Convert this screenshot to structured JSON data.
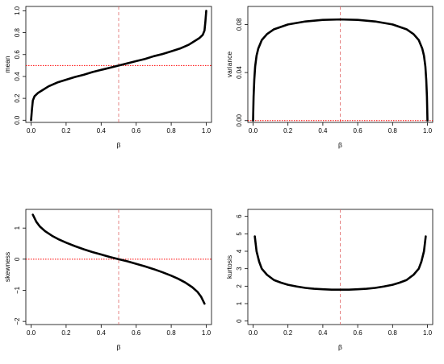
{
  "chart_data": [
    {
      "type": "line",
      "xlabel": "β",
      "ylabel": "mean",
      "xlim": [
        0,
        1
      ],
      "ylim": [
        0,
        1
      ],
      "xticks": [
        0.0,
        0.2,
        0.4,
        0.6,
        0.8,
        1.0
      ],
      "xtick_labels": [
        "0.0",
        "0.2",
        "0.4",
        "0.6",
        "0.8",
        "1.0"
      ],
      "yticks": [
        0,
        0.2,
        0.4,
        0.6,
        0.8,
        1.0
      ],
      "ytick_labels": [
        "0.0",
        "0.2",
        "0.4",
        "0.6",
        "0.8",
        "1.0"
      ],
      "reference_lines": {
        "vertical_x": 0.5,
        "horizontal_y": 0.5
      },
      "x": [
        0.0,
        0.005,
        0.01,
        0.02,
        0.04,
        0.06,
        0.1,
        0.15,
        0.2,
        0.25,
        0.3,
        0.35,
        0.4,
        0.45,
        0.5,
        0.55,
        0.6,
        0.65,
        0.7,
        0.75,
        0.8,
        0.85,
        0.9,
        0.94,
        0.96,
        0.98,
        0.99,
        0.995,
        1.0
      ],
      "y": [
        0.0,
        0.1,
        0.18,
        0.22,
        0.25,
        0.27,
        0.31,
        0.345,
        0.37,
        0.395,
        0.415,
        0.44,
        0.46,
        0.48,
        0.5,
        0.52,
        0.54,
        0.56,
        0.585,
        0.605,
        0.63,
        0.655,
        0.69,
        0.73,
        0.75,
        0.78,
        0.82,
        0.9,
        1.0
      ],
      "grid": false
    },
    {
      "type": "line",
      "xlabel": "β",
      "ylabel": "variance",
      "xlim": [
        0,
        1
      ],
      "ylim": [
        0,
        0.095
      ],
      "xticks": [
        0.0,
        0.2,
        0.4,
        0.6,
        0.8,
        1.0
      ],
      "xtick_labels": [
        "0.0",
        "0.2",
        "0.4",
        "0.6",
        "0.8",
        "1.0"
      ],
      "yticks": [
        0.0,
        0.04,
        0.08
      ],
      "ytick_labels": [
        "0.00",
        "0.04",
        "0.08"
      ],
      "reference_lines": {
        "vertical_x": 0.5,
        "horizontal_y": 0.0
      },
      "x": [
        0.0,
        0.003,
        0.007,
        0.012,
        0.02,
        0.03,
        0.05,
        0.08,
        0.12,
        0.2,
        0.3,
        0.4,
        0.5,
        0.6,
        0.7,
        0.8,
        0.88,
        0.92,
        0.95,
        0.97,
        0.98,
        0.988,
        0.993,
        0.997,
        1.0
      ],
      "y": [
        0.0,
        0.02,
        0.034,
        0.045,
        0.054,
        0.06,
        0.067,
        0.072,
        0.076,
        0.08,
        0.0825,
        0.0838,
        0.0842,
        0.0838,
        0.0825,
        0.08,
        0.076,
        0.072,
        0.067,
        0.06,
        0.054,
        0.045,
        0.034,
        0.02,
        0.0
      ],
      "grid": false
    },
    {
      "type": "line",
      "xlabel": "β",
      "ylabel": "skewness",
      "xlim": [
        0,
        1
      ],
      "ylim": [
        -2,
        1.5
      ],
      "xticks": [
        0.0,
        0.2,
        0.4,
        0.6,
        0.8,
        1.0
      ],
      "xtick_labels": [
        "0.0",
        "0.2",
        "0.4",
        "0.6",
        "0.8",
        "1.0"
      ],
      "yticks": [
        -2,
        -1,
        0,
        1
      ],
      "ytick_labels": [
        "−2",
        "−1",
        "0",
        "1"
      ],
      "reference_lines": {
        "vertical_x": 0.5,
        "horizontal_y": 0.0
      },
      "x": [
        0.01,
        0.03,
        0.05,
        0.08,
        0.12,
        0.16,
        0.2,
        0.25,
        0.3,
        0.35,
        0.4,
        0.45,
        0.5,
        0.55,
        0.6,
        0.65,
        0.7,
        0.75,
        0.8,
        0.84,
        0.88,
        0.92,
        0.95,
        0.97,
        0.99
      ],
      "y": [
        1.43,
        1.2,
        1.05,
        0.9,
        0.75,
        0.63,
        0.53,
        0.42,
        0.32,
        0.23,
        0.15,
        0.07,
        0.0,
        -0.07,
        -0.15,
        -0.23,
        -0.32,
        -0.42,
        -0.53,
        -0.63,
        -0.75,
        -0.9,
        -1.05,
        -1.2,
        -1.43
      ],
      "grid": false
    },
    {
      "type": "line",
      "xlabel": "β",
      "ylabel": "kurtosis",
      "xlim": [
        0,
        1
      ],
      "ylim": [
        0,
        6
      ],
      "xticks": [
        0.0,
        0.2,
        0.4,
        0.6,
        0.8,
        1.0
      ],
      "xtick_labels": [
        "0.0",
        "0.2",
        "0.4",
        "0.6",
        "0.8",
        "1.0"
      ],
      "yticks": [
        0,
        1,
        2,
        3,
        4,
        5,
        6
      ],
      "ytick_labels": [
        "0",
        "1",
        "2",
        "3",
        "4",
        "5",
        "6"
      ],
      "reference_lines": {
        "vertical_x": 0.5
      },
      "x": [
        0.01,
        0.02,
        0.035,
        0.05,
        0.08,
        0.12,
        0.16,
        0.2,
        0.25,
        0.3,
        0.35,
        0.4,
        0.45,
        0.5,
        0.55,
        0.6,
        0.65,
        0.7,
        0.75,
        0.8,
        0.84,
        0.88,
        0.92,
        0.95,
        0.965,
        0.98,
        0.99
      ],
      "y": [
        4.85,
        4.0,
        3.4,
        3.0,
        2.65,
        2.35,
        2.2,
        2.08,
        1.98,
        1.9,
        1.85,
        1.82,
        1.8,
        1.8,
        1.8,
        1.82,
        1.85,
        1.9,
        1.98,
        2.08,
        2.2,
        2.35,
        2.65,
        3.0,
        3.4,
        4.0,
        4.85
      ],
      "grid": false
    }
  ]
}
